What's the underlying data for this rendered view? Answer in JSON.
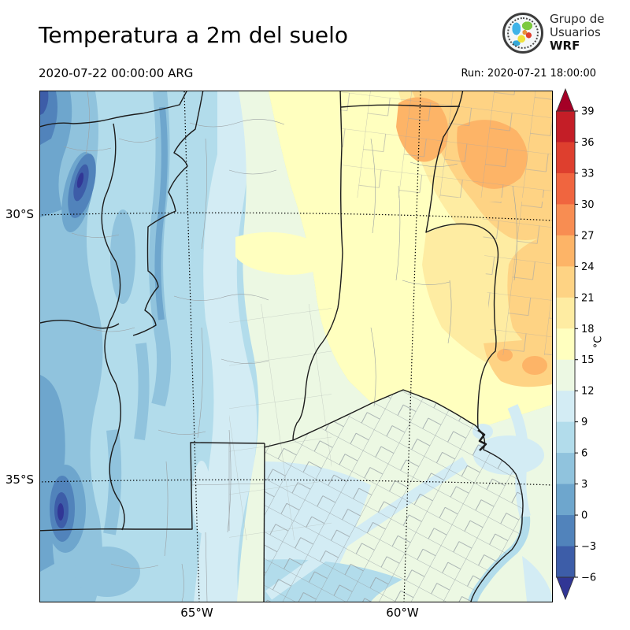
{
  "header": {
    "title": "Temperatura a 2m del suelo",
    "valid_time": "2020-07-22 00:00:00 ARG",
    "run_label": "Run: 2020-07-21 18:00:00"
  },
  "logo": {
    "lines": [
      "Grupo de",
      "Usuarios",
      "WRF"
    ]
  },
  "map": {
    "y_axis_labels": [
      "30°S",
      "35°S"
    ],
    "x_axis_labels": [
      "65°W",
      "60°W"
    ]
  },
  "colorbar": {
    "unit": "°C",
    "range_c": [
      -6,
      39
    ],
    "interval_c": 3,
    "tick_labels_top_to_bottom": [
      "39",
      "36",
      "33",
      "30",
      "27",
      "24",
      "21",
      "18",
      "15",
      "12",
      "9",
      "6",
      "3",
      "0",
      "−3",
      "−6"
    ],
    "segment_colors_top_to_bottom": [
      "#c41e27",
      "#de3f2e",
      "#f0653f",
      "#f88d52",
      "#fdb467",
      "#fed384",
      "#feeca2",
      "#ffffbf",
      "#ecf8e3",
      "#d3ecf4",
      "#b2dceb",
      "#90c3dd",
      "#6ea6cd",
      "#5183bb",
      "#3d5da8"
    ],
    "over_color": "#a50026",
    "under_color": "#313695",
    "outline_color": "#333333"
  }
}
